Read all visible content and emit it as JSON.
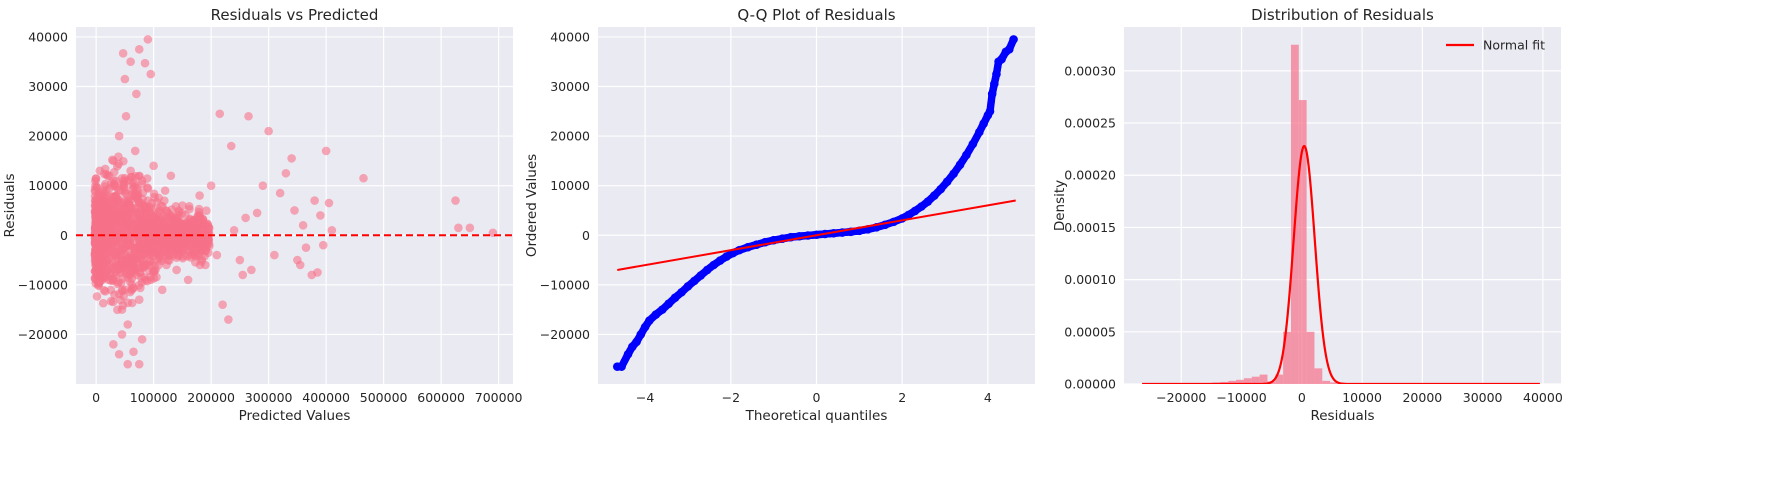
{
  "chart_data": [
    {
      "type": "scatter",
      "title": "Residuals vs Predicted",
      "xlabel": "Predicted Values",
      "ylabel": "Residuals",
      "xlim": [
        -35000,
        725000
      ],
      "ylim": [
        -30000,
        42000
      ],
      "xticks": [
        0,
        100000,
        200000,
        300000,
        400000,
        500000,
        600000,
        700000
      ],
      "xtick_labels": [
        "0",
        "100000",
        "200000",
        "300000",
        "400000",
        "500000",
        "600000",
        "700000"
      ],
      "yticks": [
        -20000,
        -10000,
        0,
        10000,
        20000,
        30000,
        40000
      ],
      "ytick_labels": [
        "−20000",
        "−10000",
        "0",
        "10000",
        "20000",
        "30000",
        "40000"
      ],
      "grid": true,
      "point_color": "#f77189",
      "point_alpha": 0.6,
      "reference_line": {
        "y": 0,
        "style": "dashed",
        "color": "#ff0000"
      },
      "points": [
        [
          5000,
          4000
        ],
        [
          8000,
          -2000
        ],
        [
          12000,
          9000
        ],
        [
          15000,
          -6000
        ],
        [
          18000,
          2000
        ],
        [
          20000,
          12000
        ],
        [
          22000,
          -9000
        ],
        [
          25000,
          5000
        ],
        [
          28000,
          -3000
        ],
        [
          30000,
          15000
        ],
        [
          32000,
          -12000
        ],
        [
          35000,
          8000
        ],
        [
          38000,
          -7000
        ],
        [
          40000,
          20000
        ],
        [
          42000,
          3000
        ],
        [
          45000,
          -15000
        ],
        [
          48000,
          10000
        ],
        [
          50000,
          -4000
        ],
        [
          52000,
          24000
        ],
        [
          55000,
          -18000
        ],
        [
          58000,
          6000
        ],
        [
          60000,
          13000
        ],
        [
          62000,
          -10000
        ],
        [
          65000,
          2000
        ],
        [
          68000,
          17000
        ],
        [
          70000,
          -8000
        ],
        [
          72000,
          9000
        ],
        [
          75000,
          -13000
        ],
        [
          78000,
          4000
        ],
        [
          80000,
          11000
        ],
        [
          85000,
          -6000
        ],
        [
          90000,
          7000
        ],
        [
          95000,
          -9000
        ],
        [
          100000,
          14000
        ],
        [
          105000,
          -3000
        ],
        [
          110000,
          5000
        ],
        [
          115000,
          -11000
        ],
        [
          120000,
          9000
        ],
        [
          125000,
          -5000
        ],
        [
          130000,
          12000
        ],
        [
          140000,
          -7000
        ],
        [
          150000,
          6000
        ],
        [
          160000,
          -9000
        ],
        [
          170000,
          3000
        ],
        [
          180000,
          8000
        ],
        [
          190000,
          -6000
        ],
        [
          200000,
          10000
        ],
        [
          210000,
          -4000
        ],
        [
          47000,
          36700
        ],
        [
          60000,
          35000
        ],
        [
          75000,
          37500
        ],
        [
          85000,
          34700
        ],
        [
          90000,
          39500
        ],
        [
          95000,
          32500
        ],
        [
          50000,
          31500
        ],
        [
          70000,
          28500
        ],
        [
          30000,
          -22000
        ],
        [
          40000,
          -24000
        ],
        [
          55000,
          -26000
        ],
        [
          75000,
          -26000
        ],
        [
          65000,
          -23500
        ],
        [
          80000,
          -21000
        ],
        [
          45000,
          -20000
        ],
        [
          215000,
          24500
        ],
        [
          235000,
          18000
        ],
        [
          265000,
          24000
        ],
        [
          290000,
          10000
        ],
        [
          300000,
          21000
        ],
        [
          320000,
          8500
        ],
        [
          330000,
          12500
        ],
        [
          340000,
          15500
        ],
        [
          345000,
          5000
        ],
        [
          350000,
          -5000
        ],
        [
          360000,
          2000
        ],
        [
          375000,
          -8000
        ],
        [
          380000,
          7000
        ],
        [
          390000,
          4000
        ],
        [
          400000,
          17000
        ],
        [
          405000,
          6500
        ],
        [
          395000,
          -2000
        ],
        [
          410000,
          1000
        ],
        [
          465000,
          11500
        ],
        [
          250000,
          -5000
        ],
        [
          260000,
          3500
        ],
        [
          270000,
          -7000
        ],
        [
          280000,
          4500
        ],
        [
          310000,
          -4000
        ],
        [
          355000,
          -6000
        ],
        [
          365000,
          -2500
        ],
        [
          385000,
          -7500
        ],
        [
          220000,
          -14000
        ],
        [
          230000,
          -17000
        ],
        [
          240000,
          1000
        ],
        [
          255000,
          -8000
        ],
        [
          625000,
          7000
        ],
        [
          630000,
          1500
        ],
        [
          650000,
          1500
        ],
        [
          690000,
          500
        ]
      ]
    },
    {
      "type": "scatter",
      "title": "Q-Q Plot of Residuals",
      "xlabel": "Theoretical quantiles",
      "ylabel": "Ordered Values",
      "xlim": [
        -5.1,
        5.1
      ],
      "ylim": [
        -30000,
        42000
      ],
      "xticks": [
        -4,
        -2,
        0,
        2,
        4
      ],
      "xtick_labels": [
        "−4",
        "−2",
        "0",
        "2",
        "4"
      ],
      "yticks": [
        -20000,
        -10000,
        0,
        10000,
        20000,
        30000,
        40000
      ],
      "ytick_labels": [
        "−20000",
        "−10000",
        "0",
        "10000",
        "20000",
        "30000",
        "40000"
      ],
      "grid": true,
      "point_color": "#0000ff",
      "fit_line": {
        "x": [
          -4.65,
          4.65
        ],
        "y": [
          -7000,
          7000
        ],
        "color": "#ff0000"
      },
      "points": [
        [
          -4.65,
          -26500
        ],
        [
          -4.55,
          -26500
        ],
        [
          -4.4,
          -24000
        ],
        [
          -4.3,
          -22500
        ],
        [
          -4.2,
          -21500
        ],
        [
          -4.1,
          -20000
        ],
        [
          -4.0,
          -18500
        ],
        [
          -3.9,
          -17200
        ],
        [
          -3.75,
          -16000
        ],
        [
          -3.6,
          -15000
        ],
        [
          -3.45,
          -13800
        ],
        [
          -3.3,
          -12600
        ],
        [
          -3.15,
          -11500
        ],
        [
          -3.0,
          -10300
        ],
        [
          -2.85,
          -9200
        ],
        [
          -2.7,
          -8100
        ],
        [
          -2.55,
          -7000
        ],
        [
          -2.4,
          -6000
        ],
        [
          -2.25,
          -5100
        ],
        [
          -2.1,
          -4300
        ],
        [
          -1.95,
          -3600
        ],
        [
          -1.8,
          -3000
        ],
        [
          -1.6,
          -2400
        ],
        [
          -1.4,
          -1900
        ],
        [
          -1.2,
          -1400
        ],
        [
          -1.0,
          -1000
        ],
        [
          -0.8,
          -700
        ],
        [
          -0.6,
          -400
        ],
        [
          -0.4,
          -200
        ],
        [
          -0.2,
          -50
        ],
        [
          0.0,
          100
        ],
        [
          0.2,
          250
        ],
        [
          0.4,
          400
        ],
        [
          0.6,
          550
        ],
        [
          0.8,
          700
        ],
        [
          1.0,
          900
        ],
        [
          1.2,
          1200
        ],
        [
          1.4,
          1600
        ],
        [
          1.6,
          2100
        ],
        [
          1.8,
          2700
        ],
        [
          2.0,
          3400
        ],
        [
          2.15,
          4100
        ],
        [
          2.3,
          4900
        ],
        [
          2.45,
          5800
        ],
        [
          2.6,
          6800
        ],
        [
          2.75,
          8000
        ],
        [
          2.9,
          9300
        ],
        [
          3.05,
          10800
        ],
        [
          3.2,
          12400
        ],
        [
          3.35,
          14200
        ],
        [
          3.5,
          16200
        ],
        [
          3.65,
          18400
        ],
        [
          3.8,
          20800
        ],
        [
          3.9,
          22500
        ],
        [
          4.0,
          24200
        ],
        [
          4.05,
          25000
        ],
        [
          4.1,
          28500
        ],
        [
          4.15,
          30500
        ],
        [
          4.2,
          32500
        ],
        [
          4.25,
          35000
        ],
        [
          4.32,
          35500
        ],
        [
          4.42,
          37000
        ],
        [
          4.5,
          37500
        ],
        [
          4.6,
          39500
        ]
      ]
    },
    {
      "type": "histogram",
      "title": "Distribution of Residuals",
      "xlabel": "Residuals",
      "ylabel": "Density",
      "xlim": [
        -29500,
        43000
      ],
      "ylim": [
        0,
        0.000342
      ],
      "xticks": [
        -20000,
        -10000,
        0,
        10000,
        20000,
        30000,
        40000
      ],
      "xtick_labels": [
        "−20000",
        "−10000",
        "0",
        "10000",
        "20000",
        "30000",
        "40000"
      ],
      "yticks": [
        0,
        5e-05,
        0.0001,
        0.00015,
        0.0002,
        0.00025,
        0.0003
      ],
      "ytick_labels": [
        "0.00000",
        "0.00005",
        "0.00010",
        "0.00015",
        "0.00020",
        "0.00025",
        "0.00030"
      ],
      "grid": true,
      "bar_color": "#f77189",
      "bar_alpha": 0.7,
      "bins": {
        "edges": [
          -26500,
          -25200,
          -23900,
          -22600,
          -21300,
          -20000,
          -18700,
          -17400,
          -16100,
          -14800,
          -13500,
          -12200,
          -10900,
          -9600,
          -8300,
          -7000,
          -5700,
          -4400,
          -3100,
          -1800,
          -500,
          800,
          2100,
          3400,
          4700,
          6000,
          7300,
          8600
        ],
        "density": [
          0,
          0,
          0,
          0,
          0,
          0,
          0,
          5e-07,
          1e-06,
          1.5e-06,
          2e-06,
          3e-06,
          4e-06,
          5.5e-06,
          7e-06,
          9e-06,
          2.5e-06,
          9e-06,
          5e-05,
          0.000325,
          0.000272,
          5e-05,
          1.5e-05,
          3e-06,
          1.5e-06,
          8e-07,
          3e-07
        ]
      },
      "fit_curve": {
        "name": "Normal fit",
        "mean": 400,
        "std": 1750,
        "x_range": [
          -26500,
          39500
        ],
        "color": "#ff0000"
      },
      "legend": {
        "placement": "top-right",
        "entries": [
          "Normal fit"
        ]
      }
    }
  ]
}
